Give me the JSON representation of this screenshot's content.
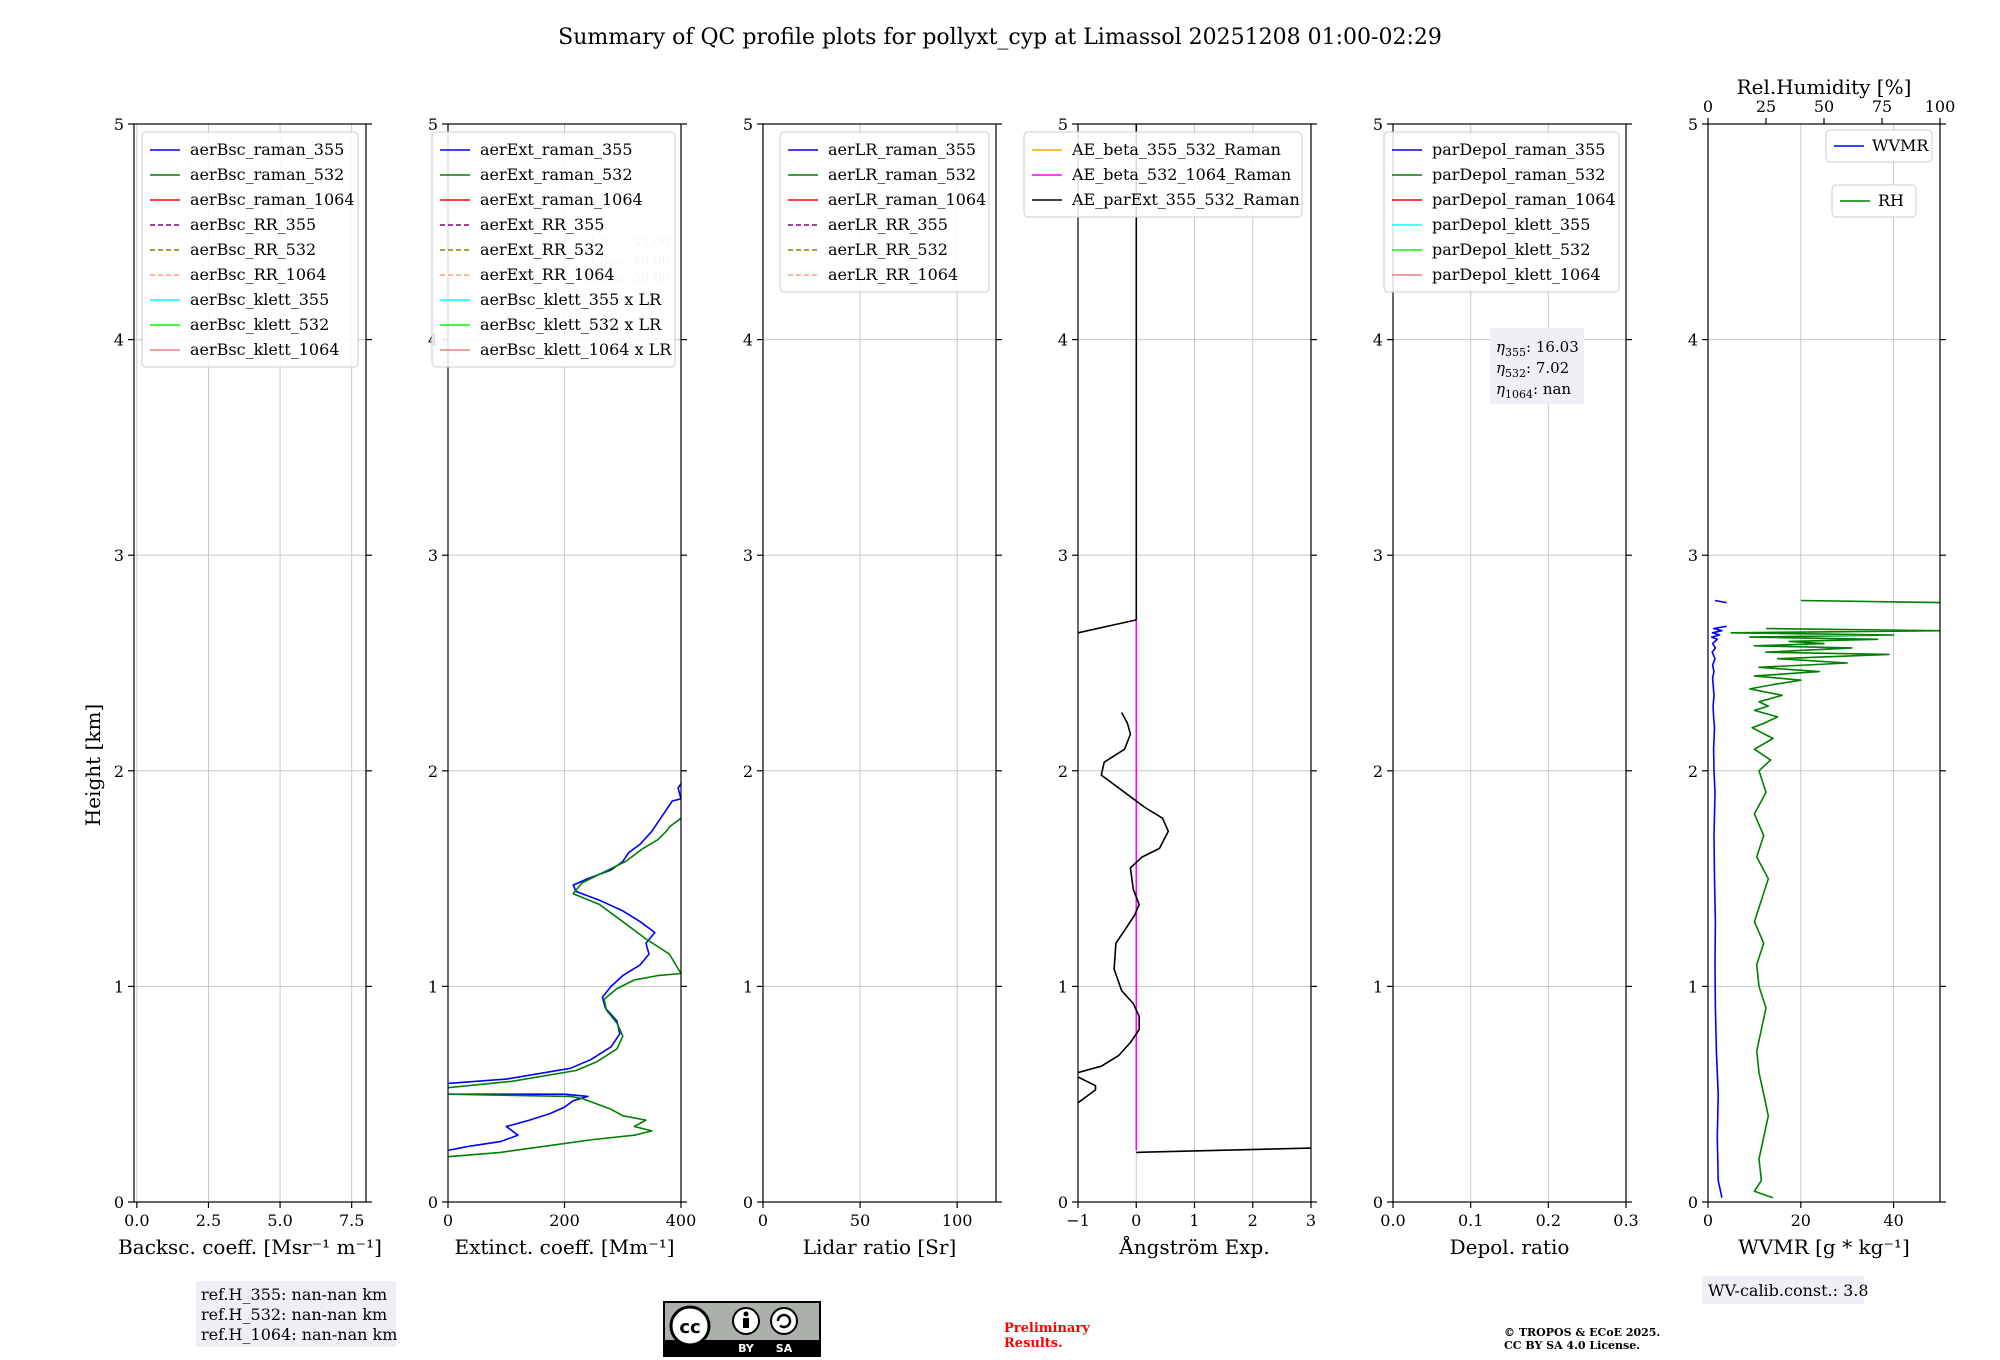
{
  "title": "Summary of QC profile plots for pollyxt_cyp at Limassol 20251208 01:00-02:29",
  "ylabel": "Height [km]",
  "colors": {
    "blue": "#0000ff",
    "green": "#008000",
    "red": "#ff0000",
    "purple": "#800080",
    "olive": "#808000",
    "salmon": "#ffa07a",
    "cyan": "#00ffff",
    "lime": "#00ff00",
    "lightred": "#f08080",
    "orange": "#ffa500",
    "magenta": "#ff00ff",
    "black": "#000000",
    "watermark": "#ff0000"
  },
  "chart_data": [
    {
      "type": "line",
      "id": "bsc",
      "xlabel": "Backsc. coeff. [Msr⁻¹ m⁻¹]",
      "xlim": [
        -0.1,
        8.0
      ],
      "ylim": [
        0,
        5
      ],
      "xticks": [
        0.0,
        2.5,
        5.0,
        7.5
      ],
      "xtick_labels": [
        "0.0",
        "2.5",
        "5.0",
        "7.5"
      ],
      "yticks": [
        0,
        1,
        2,
        3,
        4,
        5
      ],
      "ytick_labels": [
        "0",
        "1",
        "2",
        "3",
        "4",
        "5"
      ],
      "grid": true,
      "legend_position": "top-right",
      "legend": [
        {
          "label": "aerBsc_raman_355",
          "color": "blue",
          "dash": false
        },
        {
          "label": "aerBsc_raman_532",
          "color": "green",
          "dash": false
        },
        {
          "label": "aerBsc_raman_1064",
          "color": "red",
          "dash": false
        },
        {
          "label": "aerBsc_RR_355",
          "color": "purple",
          "dash": true
        },
        {
          "label": "aerBsc_RR_532",
          "color": "olive",
          "dash": true
        },
        {
          "label": "aerBsc_RR_1064",
          "color": "salmon",
          "dash": true
        },
        {
          "label": "aerBsc_klett_355",
          "color": "cyan",
          "dash": false
        },
        {
          "label": "aerBsc_klett_532",
          "color": "lime",
          "dash": false
        },
        {
          "label": "aerBsc_klett_1064",
          "color": "lightred",
          "dash": false
        }
      ],
      "series": [],
      "note": [
        "ref.H_355: nan-nan km",
        "ref.H_532: nan-nan km",
        "ref.H_1064: nan-nan km"
      ]
    },
    {
      "type": "line",
      "id": "ext",
      "xlabel": "Extinct. coeff. [Mm⁻¹]",
      "xlim": [
        0,
        400
      ],
      "ylim": [
        0,
        5
      ],
      "xticks": [
        0,
        200,
        400
      ],
      "xtick_labels": [
        "0",
        "200",
        "400"
      ],
      "yticks": [
        0,
        1,
        2,
        3,
        4,
        5
      ],
      "ytick_labels": [
        "0",
        "1",
        "2",
        "3",
        "4",
        "5"
      ],
      "grid": true,
      "legend_position": "top-right",
      "legend": [
        {
          "label": "aerExt_raman_355",
          "color": "blue",
          "dash": false
        },
        {
          "label": "aerExt_raman_532",
          "color": "green",
          "dash": false
        },
        {
          "label": "aerExt_raman_1064",
          "color": "red",
          "dash": false
        },
        {
          "label": "aerExt_RR_355",
          "color": "purple",
          "dash": true
        },
        {
          "label": "aerExt_RR_532",
          "color": "olive",
          "dash": true
        },
        {
          "label": "aerExt_RR_1064",
          "color": "salmon",
          "dash": true
        },
        {
          "label": "aerBsc_klett_355 x LR",
          "color": "cyan",
          "dash": false
        },
        {
          "label": "aerBsc_klett_532 x LR",
          "color": "lime",
          "dash": false
        },
        {
          "label": "aerBsc_klett_1064 x LR",
          "color": "lightred",
          "dash": false
        }
      ],
      "faint_text": [
        "LR₃₅₅: 45.00",
        "LR₅₃₂: 40.00",
        "LR₁₀₆₄: 50.00"
      ],
      "series": [
        {
          "name": "aerExt_raman_355",
          "color": "blue",
          "x": [
            0,
            100,
            210,
            245,
            280,
            295,
            290,
            270,
            265,
            280,
            300,
            330,
            345,
            340,
            355,
            330,
            300,
            260,
            220,
            215,
            240,
            280,
            300,
            310,
            330,
            350,
            370,
            385,
            400,
            395,
            400
          ],
          "y": [
            0.55,
            0.57,
            0.62,
            0.66,
            0.72,
            0.78,
            0.84,
            0.9,
            0.95,
            1.0,
            1.05,
            1.1,
            1.15,
            1.2,
            1.25,
            1.3,
            1.35,
            1.4,
            1.44,
            1.47,
            1.5,
            1.54,
            1.58,
            1.62,
            1.66,
            1.72,
            1.8,
            1.86,
            1.87,
            1.92,
            1.94
          ]
        },
        {
          "name": "aerExt_raman_532",
          "color": "green",
          "x": [
            0,
            110,
            220,
            255,
            290,
            300,
            290,
            272,
            268,
            290,
            320,
            360,
            400,
            380,
            340,
            300,
            260,
            215,
            230,
            275,
            305,
            335,
            360,
            375,
            380,
            400
          ],
          "y": [
            0.53,
            0.56,
            0.61,
            0.65,
            0.71,
            0.77,
            0.83,
            0.89,
            0.94,
            0.99,
            1.03,
            1.05,
            1.06,
            1.15,
            1.22,
            1.3,
            1.38,
            1.43,
            1.48,
            1.54,
            1.58,
            1.64,
            1.68,
            1.72,
            1.74,
            1.78
          ]
        },
        {
          "name": "aerExt_raman_355",
          "color": "blue",
          "x": [
            0,
            40,
            90,
            120,
            100,
            140,
            175,
            200,
            215,
            240,
            200,
            0
          ],
          "y": [
            0.24,
            0.26,
            0.28,
            0.31,
            0.35,
            0.38,
            0.41,
            0.44,
            0.47,
            0.49,
            0.5,
            0.5
          ]
        },
        {
          "name": "aerExt_raman_532",
          "color": "green",
          "x": [
            0,
            90,
            170,
            250,
            320,
            350,
            320,
            340,
            300,
            280,
            250,
            230,
            210,
            0
          ],
          "y": [
            0.21,
            0.23,
            0.26,
            0.29,
            0.31,
            0.33,
            0.35,
            0.38,
            0.4,
            0.43,
            0.46,
            0.48,
            0.49,
            0.5
          ]
        }
      ]
    },
    {
      "type": "line",
      "id": "lr",
      "xlabel": "Lidar ratio [Sr]",
      "xlim": [
        0,
        120
      ],
      "ylim": [
        0,
        5
      ],
      "xticks": [
        0,
        50,
        100
      ],
      "xtick_labels": [
        "0",
        "50",
        "100"
      ],
      "yticks": [
        0,
        1,
        2,
        3,
        4,
        5
      ],
      "ytick_labels": [
        "0",
        "1",
        "2",
        "3",
        "4",
        "5"
      ],
      "grid": true,
      "legend_position": "top-right",
      "legend": [
        {
          "label": "aerLR_raman_355",
          "color": "blue",
          "dash": false
        },
        {
          "label": "aerLR_raman_532",
          "color": "green",
          "dash": false
        },
        {
          "label": "aerLR_raman_1064",
          "color": "red",
          "dash": false
        },
        {
          "label": "aerLR_RR_355",
          "color": "purple",
          "dash": true
        },
        {
          "label": "aerLR_RR_532",
          "color": "olive",
          "dash": true
        },
        {
          "label": "aerLR_RR_1064",
          "color": "salmon",
          "dash": true
        }
      ],
      "series": []
    },
    {
      "type": "line",
      "id": "ae",
      "xlabel": "Ångström Exp.",
      "xlim": [
        -1,
        3
      ],
      "ylim": [
        0,
        5
      ],
      "xticks": [
        -1,
        0,
        1,
        2,
        3
      ],
      "xtick_labels": [
        "−1",
        "0",
        "1",
        "2",
        "3"
      ],
      "yticks": [
        0,
        1,
        2,
        3,
        4,
        5
      ],
      "ytick_labels": [
        "0",
        "1",
        "2",
        "3",
        "4",
        "5"
      ],
      "grid": true,
      "legend_position": "top-center",
      "legend": [
        {
          "label": "AE_beta_355_532_Raman",
          "color": "orange",
          "dash": false
        },
        {
          "label": "AE_beta_532_1064_Raman",
          "color": "magenta",
          "dash": false
        },
        {
          "label": "AE_parExt_355_532_Raman",
          "color": "black",
          "dash": false
        }
      ],
      "series": [
        {
          "name": "AE_beta_532_1064_Raman",
          "color": "magenta",
          "x": [
            0,
            0
          ],
          "y": [
            0.24,
            2.7
          ]
        },
        {
          "name": "AE_parExt_355_532_Raman",
          "color": "black",
          "x": [
            0,
            0
          ],
          "y": [
            2.7,
            5.0
          ]
        },
        {
          "name": "AE_parExt_355_532_Raman",
          "color": "black",
          "x": [
            -1,
            0
          ],
          "y": [
            2.64,
            2.7
          ]
        },
        {
          "name": "AE_parExt_355_532_Raman",
          "color": "black",
          "x": [
            0,
            3
          ],
          "y": [
            0.23,
            0.25
          ]
        },
        {
          "name": "AE_parExt_355_532_Raman",
          "color": "black",
          "x": [
            -1,
            -0.6,
            -0.3,
            -0.1,
            0.05,
            0.05,
            -0.05,
            -0.25,
            -0.38,
            -0.35,
            -0.15,
            -0.03,
            0.05,
            -0.05,
            -0.1,
            0.1,
            0.4,
            0.55,
            0.45,
            0.15,
            -0.1,
            -0.35,
            -0.6,
            -0.55,
            -0.2,
            -0.1,
            -0.15,
            -0.25
          ],
          "y": [
            0.6,
            0.63,
            0.68,
            0.74,
            0.8,
            0.86,
            0.92,
            0.98,
            1.08,
            1.2,
            1.28,
            1.33,
            1.38,
            1.45,
            1.55,
            1.6,
            1.64,
            1.72,
            1.78,
            1.83,
            1.88,
            1.93,
            1.98,
            2.04,
            2.1,
            2.17,
            2.22,
            2.27
          ]
        },
        {
          "name": "AE_parExt_355_532_Raman",
          "color": "black",
          "x": [
            -1,
            -0.85,
            -0.7,
            -0.7,
            -0.85,
            -1
          ],
          "y": [
            0.46,
            0.49,
            0.52,
            0.54,
            0.56,
            0.58
          ]
        }
      ]
    },
    {
      "type": "line",
      "id": "depol",
      "xlabel": "Depol. ratio",
      "xlim": [
        0,
        0.3
      ],
      "ylim": [
        0,
        5
      ],
      "xticks": [
        0.0,
        0.1,
        0.2,
        0.3
      ],
      "xtick_labels": [
        "0.0",
        "0.1",
        "0.2",
        "0.3"
      ],
      "yticks": [
        0,
        1,
        2,
        3,
        4,
        5
      ],
      "ytick_labels": [
        "0",
        "1",
        "2",
        "3",
        "4",
        "5"
      ],
      "grid": true,
      "legend_position": "top-right",
      "legend": [
        {
          "label": "parDepol_raman_355",
          "color": "blue",
          "dash": false
        },
        {
          "label": "parDepol_raman_532",
          "color": "green",
          "dash": false
        },
        {
          "label": "parDepol_raman_1064",
          "color": "red",
          "dash": false
        },
        {
          "label": "parDepol_klett_355",
          "color": "cyan",
          "dash": false
        },
        {
          "label": "parDepol_klett_532",
          "color": "lime",
          "dash": false
        },
        {
          "label": "parDepol_klett_1064",
          "color": "lightred",
          "dash": false
        }
      ],
      "series": [],
      "eta": [
        {
          "sub": "355",
          "value": "16.03"
        },
        {
          "sub": "532",
          "value": "7.02"
        },
        {
          "sub": "1064",
          "value": "nan"
        }
      ]
    },
    {
      "type": "line",
      "id": "wv",
      "xlabel": "WVMR [g * kg⁻¹]",
      "xlabel_top": "Rel.Humidity [%]",
      "xlim": [
        0,
        50
      ],
      "ylim": [
        0,
        5
      ],
      "xticks": [
        0,
        20,
        40
      ],
      "xtick_labels": [
        "0",
        "20",
        "40"
      ],
      "xlim_top": [
        0,
        100
      ],
      "xticks_top": [
        0,
        25,
        50,
        75,
        100
      ],
      "xtick_labels_top": [
        "0",
        "25",
        "50",
        "75",
        "100"
      ],
      "yticks": [
        0,
        1,
        2,
        3,
        4,
        5
      ],
      "ytick_labels": [
        "0",
        "1",
        "2",
        "3",
        "4",
        "5"
      ],
      "grid": true,
      "legend": [
        {
          "label": "WVMR",
          "color": "blue",
          "dash": false
        },
        {
          "label": "RH",
          "color": "green",
          "dash": false
        }
      ],
      "note": [
        "WV-calib.const.: 3.8"
      ],
      "series": [
        {
          "name": "WVMR",
          "color": "blue",
          "axis": "bottom",
          "x": [
            3.0,
            2.2,
            2.0,
            2.2,
            1.8,
            1.6,
            1.5,
            1.6,
            1.4,
            1.3,
            1.5,
            1.3,
            1.2,
            1.4,
            1.2,
            1.1,
            1.3,
            1.1,
            1.0,
            1.3,
            1.0,
            1.5,
            0.9,
            1.6,
            1.0,
            2.0,
            0.8,
            2.5,
            1.0,
            3.0,
            1.2,
            4.0
          ],
          "y": [
            0.02,
            0.1,
            0.3,
            0.5,
            0.7,
            0.9,
            1.1,
            1.3,
            1.5,
            1.7,
            1.9,
            2.0,
            2.1,
            2.2,
            2.25,
            2.3,
            2.35,
            2.4,
            2.43,
            2.46,
            2.49,
            2.52,
            2.55,
            2.57,
            2.59,
            2.61,
            2.62,
            2.63,
            2.64,
            2.65,
            2.66,
            2.67
          ]
        },
        {
          "name": "WVMR",
          "color": "blue",
          "axis": "bottom",
          "x": [
            1.5,
            4.0
          ],
          "y": [
            2.79,
            2.78
          ]
        },
        {
          "name": "RH",
          "color": "green",
          "axis": "top",
          "x": [
            28,
            20,
            23,
            22,
            24,
            26,
            24,
            22,
            21,
            23,
            25,
            22,
            21,
            24,
            20,
            23,
            26,
            21,
            24,
            20,
            25,
            22,
            27,
            20,
            28,
            19,
            24,
            30,
            20,
            26,
            22,
            32,
            18,
            28,
            40,
            20,
            48,
            22,
            60,
            30,
            78,
            25,
            62,
            20,
            50,
            35,
            73,
            18,
            80,
            10,
            100,
            25
          ],
          "y": [
            0.02,
            0.05,
            0.1,
            0.2,
            0.3,
            0.4,
            0.5,
            0.6,
            0.7,
            0.8,
            0.9,
            1.0,
            1.1,
            1.2,
            1.3,
            1.4,
            1.5,
            1.6,
            1.7,
            1.8,
            1.9,
            2.0,
            2.05,
            2.1,
            2.15,
            2.2,
            2.22,
            2.25,
            2.28,
            2.3,
            2.32,
            2.35,
            2.38,
            2.4,
            2.42,
            2.44,
            2.46,
            2.48,
            2.5,
            2.52,
            2.54,
            2.55,
            2.57,
            2.58,
            2.59,
            2.6,
            2.61,
            2.62,
            2.63,
            2.64,
            2.65,
            2.66
          ]
        },
        {
          "name": "RH",
          "color": "green",
          "axis": "top",
          "x": [
            40,
            100
          ],
          "y": [
            2.79,
            2.78
          ]
        }
      ]
    }
  ],
  "footer": {
    "license_badge": {
      "cc": "cc",
      "by": "BY",
      "sa": "SA"
    },
    "preliminary": [
      "Preliminary",
      "Results."
    ],
    "copyright": [
      "© TROPOS & ECoE 2025.",
      "CC BY SA 4.0 License."
    ]
  }
}
